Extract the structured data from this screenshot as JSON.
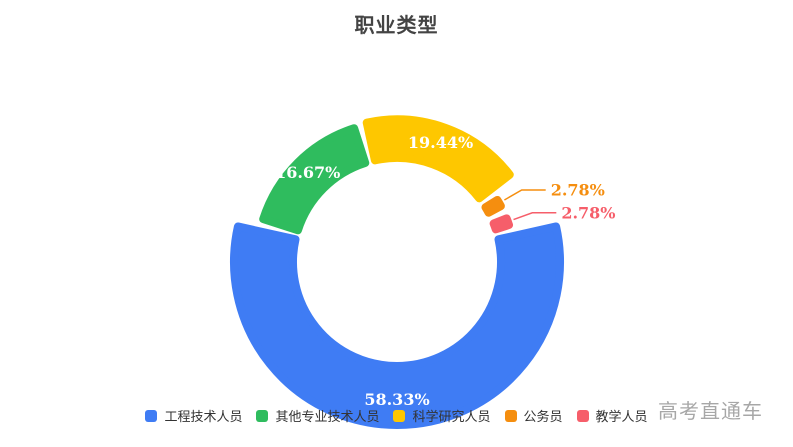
{
  "chart_data": {
    "type": "pie",
    "title": "职业类型",
    "slices": [
      {
        "name": "工程技术人员",
        "value": 58.33,
        "label": "58.33%",
        "color": "#3f7cf4"
      },
      {
        "name": "其他专业技术人员",
        "value": 16.67,
        "label": "16.67%",
        "color": "#2fbc5e"
      },
      {
        "name": "科学研究人员",
        "value": 19.44,
        "label": "19.44%",
        "color": "#fec700"
      },
      {
        "name": "公务员",
        "value": 2.78,
        "label": "2.78%",
        "color": "#f58e0f"
      },
      {
        "name": "教学人员",
        "value": 2.78,
        "label": "2.78%",
        "color": "#f65e6a"
      }
    ],
    "legend_position": "bottom"
  },
  "watermark": "高考直通车"
}
